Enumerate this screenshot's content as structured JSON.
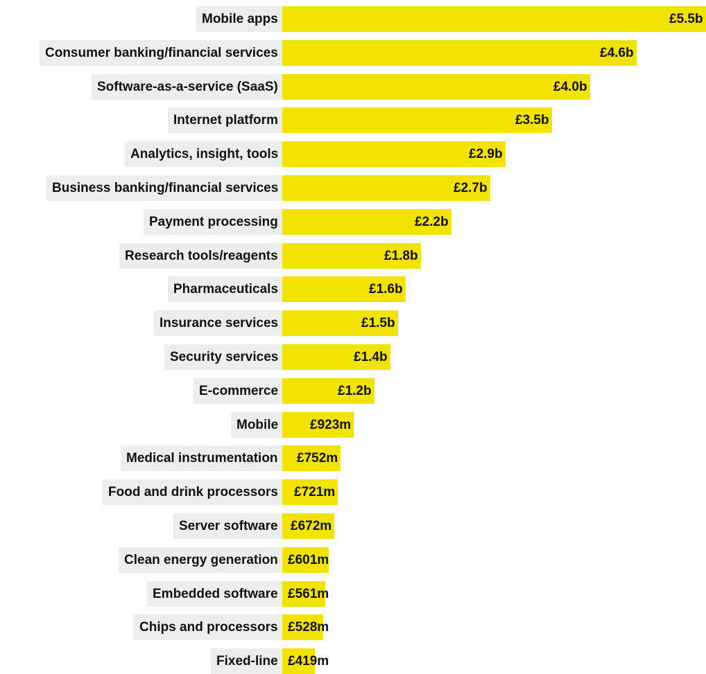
{
  "chart_data": {
    "type": "bar",
    "orientation": "horizontal",
    "categories": [
      "Mobile apps",
      "Consumer banking/financial services",
      "Software-as-a-service (SaaS)",
      "Internet platform",
      "Analytics, insight, tools",
      "Business banking/financial services",
      "Payment processing",
      "Research tools/reagents",
      "Pharmaceuticals",
      "Insurance services",
      "Security services",
      "E-commerce",
      "Mobile",
      "Medical instrumentation",
      "Food and drink processors",
      "Server software",
      "Clean energy generation",
      "Embedded software",
      "Chips and processors",
      "Fixed-line"
    ],
    "values": [
      5.5,
      4.6,
      4.0,
      3.5,
      2.9,
      2.7,
      2.2,
      1.8,
      1.6,
      1.5,
      1.4,
      1.2,
      0.923,
      0.752,
      0.721,
      0.672,
      0.601,
      0.561,
      0.528,
      0.419
    ],
    "value_labels": [
      "£5.5b",
      "£4.6b",
      "£4.0b",
      "£3.5b",
      "£2.9b",
      "£2.7b",
      "£2.2b",
      "£1.8b",
      "£1.6b",
      "£1.5b",
      "£1.4b",
      "£1.2b",
      "£923m",
      "£752m",
      "£721m",
      "£672m",
      "£601m",
      "£561m",
      "£528m",
      "£419m"
    ],
    "unit": "£ billion",
    "xlim": [
      0,
      5.5
    ],
    "bar_color": "#f2e200",
    "label_background": "#ededed",
    "grid": false,
    "legend": "none",
    "title": "",
    "xlabel": "",
    "ylabel": ""
  }
}
